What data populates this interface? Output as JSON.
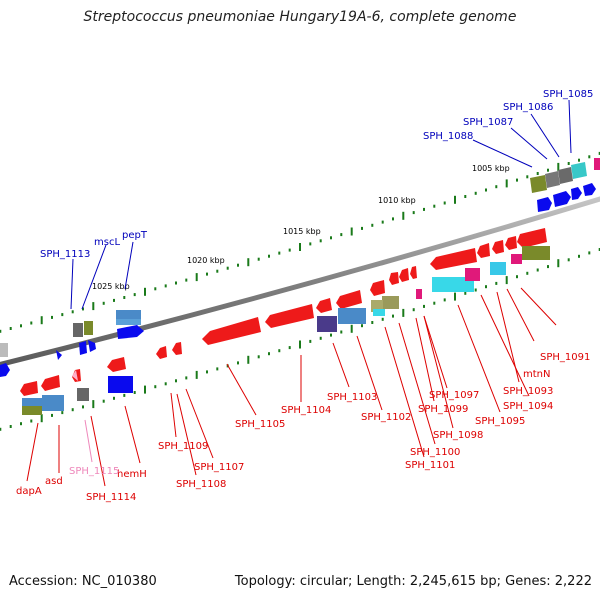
{
  "title": "Streptococcus pneumoniae Hungary19A-6, complete genome",
  "footer": {
    "accession": "Accession: NC_010380",
    "topology": "Topology: circular; Length: 2,245,615 bp; Genes: 2,222"
  },
  "colors": {
    "forward_label": "#0000bb",
    "reverse_label": "#dd0000",
    "faded_label": "#ee88bb",
    "backbone": "#888888",
    "tick": "#1a7a1a"
  },
  "scale_labels": [
    "1005 kbp",
    "1010 kbp",
    "1015 kbp",
    "1020 kbp",
    "1025 kbp"
  ],
  "forward_labels": [
    "SPH_1085",
    "SPH_1086",
    "SPH_1087",
    "SPH_1088",
    "pepT",
    "mscL",
    "SPH_1113"
  ],
  "reverse_labels": [
    "SPH_1091",
    "mtnN",
    "SPH_1093",
    "SPH_1094",
    "SPH_1095",
    "SPH_1097",
    "SPH_1099",
    "SPH_1098",
    "SPH_1100",
    "SPH_1101",
    "SPH_1102",
    "SPH_1103",
    "SPH_1104",
    "SPH_1105",
    "SPH_1107",
    "SPH_1109",
    "SPH_1108",
    "hemH",
    "SPH_1114",
    "SPH_1115",
    "asd",
    "dapA"
  ]
}
